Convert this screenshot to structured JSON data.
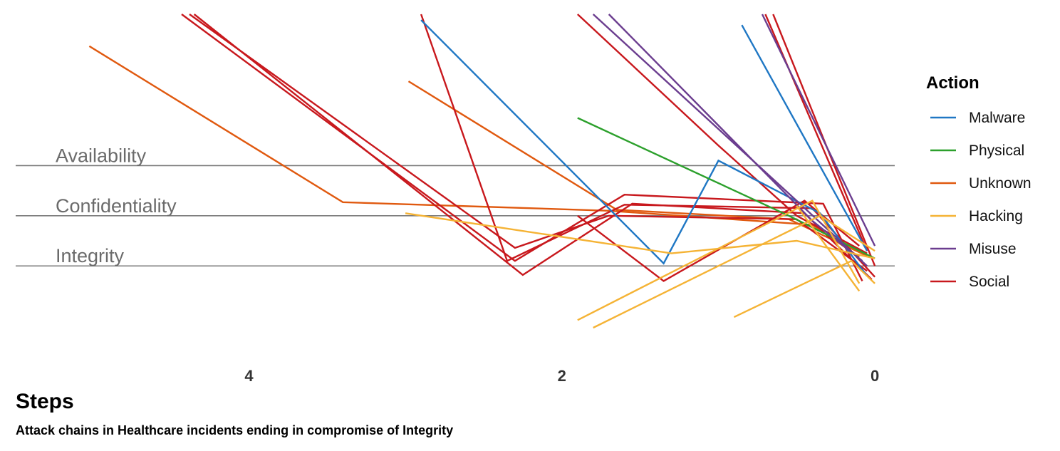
{
  "chart_data": {
    "type": "line",
    "caption": "Attack chains in Healthcare incidents ending in compromise of Integrity",
    "xlabel": "Steps",
    "x_ticks": [
      4,
      2,
      0
    ],
    "xlim": [
      5.5,
      -0.35
    ],
    "ylim": [
      -1.8,
      5.3
    ],
    "reference_lines": [
      {
        "name": "Availability",
        "y": 2
      },
      {
        "name": "Confidentiality",
        "y": 1
      },
      {
        "name": "Integrity",
        "y": 0
      }
    ],
    "legend": {
      "title": "Action",
      "position": "right",
      "entries": [
        {
          "name": "Malware",
          "color": "#1f77c4"
        },
        {
          "name": "Physical",
          "color": "#2ca02c"
        },
        {
          "name": "Unknown",
          "color": "#e0590f"
        },
        {
          "name": "Hacking",
          "color": "#f5b335"
        },
        {
          "name": "Misuse",
          "color": "#6b3d8f"
        },
        {
          "name": "Social",
          "color": "#c8181d"
        }
      ]
    },
    "series": [
      {
        "action": "Unknown",
        "points": [
          [
            5.02,
            4.38
          ],
          [
            3.4,
            1.27
          ],
          [
            1.7,
            1.1
          ],
          [
            0.4,
            0.82
          ],
          [
            0.1,
            0.18
          ]
        ]
      },
      {
        "action": "Unknown",
        "points": [
          [
            2.98,
            3.68
          ],
          [
            1.65,
            1.12
          ],
          [
            0.55,
            0.93
          ],
          [
            0.05,
            0.2
          ]
        ]
      },
      {
        "action": "Social",
        "points": [
          [
            4.43,
            6.5
          ],
          [
            2.3,
            0.1
          ],
          [
            1.6,
            1.42
          ],
          [
            0.33,
            1.24
          ],
          [
            0.08,
            -0.3
          ]
        ]
      },
      {
        "action": "Social",
        "points": [
          [
            4.38,
            6.55
          ],
          [
            2.3,
            0.36
          ],
          [
            1.7,
            1.0
          ],
          [
            0.5,
            0.93
          ],
          [
            0.05,
            -0.1
          ]
        ]
      },
      {
        "action": "Social",
        "points": [
          [
            4.35,
            5.9
          ],
          [
            2.25,
            -0.18
          ],
          [
            1.55,
            1.24
          ],
          [
            0.45,
            1.05
          ],
          [
            0.02,
            -0.27
          ]
        ]
      },
      {
        "action": "Social",
        "points": [
          [
            2.9,
            5.85
          ],
          [
            2.35,
            0.1
          ],
          [
            1.6,
            1.22
          ],
          [
            0.4,
            1.15
          ],
          [
            0.0,
            -0.22
          ]
        ]
      },
      {
        "action": "Social",
        "points": [
          [
            1.9,
            6.1
          ],
          [
            1.0,
            2.4
          ],
          [
            0.5,
            1.0
          ],
          [
            0.05,
            0.25
          ]
        ]
      },
      {
        "action": "Social",
        "points": [
          [
            0.65,
            6.0
          ],
          [
            0.0,
            0.0
          ]
        ]
      },
      {
        "action": "Social",
        "points": [
          [
            0.7,
            5.55
          ],
          [
            0.05,
            0.3
          ]
        ]
      },
      {
        "action": "Social",
        "points": [
          [
            1.9,
            1.0
          ],
          [
            1.35,
            -0.3
          ],
          [
            0.45,
            1.3
          ],
          [
            0.1,
            0.4
          ]
        ]
      },
      {
        "action": "Malware",
        "points": [
          [
            2.9,
            4.9
          ],
          [
            1.35,
            0.05
          ],
          [
            1.0,
            2.1
          ],
          [
            0.35,
            1.05
          ],
          [
            0.05,
            -0.2
          ]
        ]
      },
      {
        "action": "Malware",
        "points": [
          [
            0.85,
            4.8
          ],
          [
            0.05,
            0.3
          ]
        ]
      },
      {
        "action": "Physical",
        "points": [
          [
            1.9,
            2.95
          ],
          [
            0.55,
            1.0
          ],
          [
            0.0,
            0.15
          ]
        ]
      },
      {
        "action": "Misuse",
        "points": [
          [
            1.8,
            7.2
          ],
          [
            0.5,
            1.3
          ],
          [
            0.05,
            0.0
          ]
        ]
      },
      {
        "action": "Misuse",
        "points": [
          [
            1.7,
            7.0
          ],
          [
            0.4,
            0.9
          ],
          [
            0.08,
            0.1
          ]
        ]
      },
      {
        "action": "Misuse",
        "points": [
          [
            0.72,
            6.9
          ],
          [
            0.0,
            0.4
          ]
        ]
      },
      {
        "action": "Hacking",
        "points": [
          [
            1.9,
            -1.08
          ],
          [
            0.4,
            1.3
          ],
          [
            0.1,
            -0.35
          ]
        ]
      },
      {
        "action": "Hacking",
        "points": [
          [
            1.8,
            -1.25
          ],
          [
            0.35,
            1.0
          ],
          [
            0.0,
            0.3
          ]
        ]
      },
      {
        "action": "Hacking",
        "points": [
          [
            0.9,
            -1.02
          ],
          [
            0.15,
            0.1
          ],
          [
            0.0,
            -0.35
          ]
        ]
      },
      {
        "action": "Hacking",
        "points": [
          [
            3.0,
            1.05
          ],
          [
            1.3,
            0.25
          ],
          [
            0.5,
            0.5
          ],
          [
            0.0,
            0.15
          ]
        ]
      },
      {
        "action": "Hacking",
        "points": [
          [
            0.5,
            1.2
          ],
          [
            0.1,
            -0.5
          ]
        ]
      }
    ]
  }
}
